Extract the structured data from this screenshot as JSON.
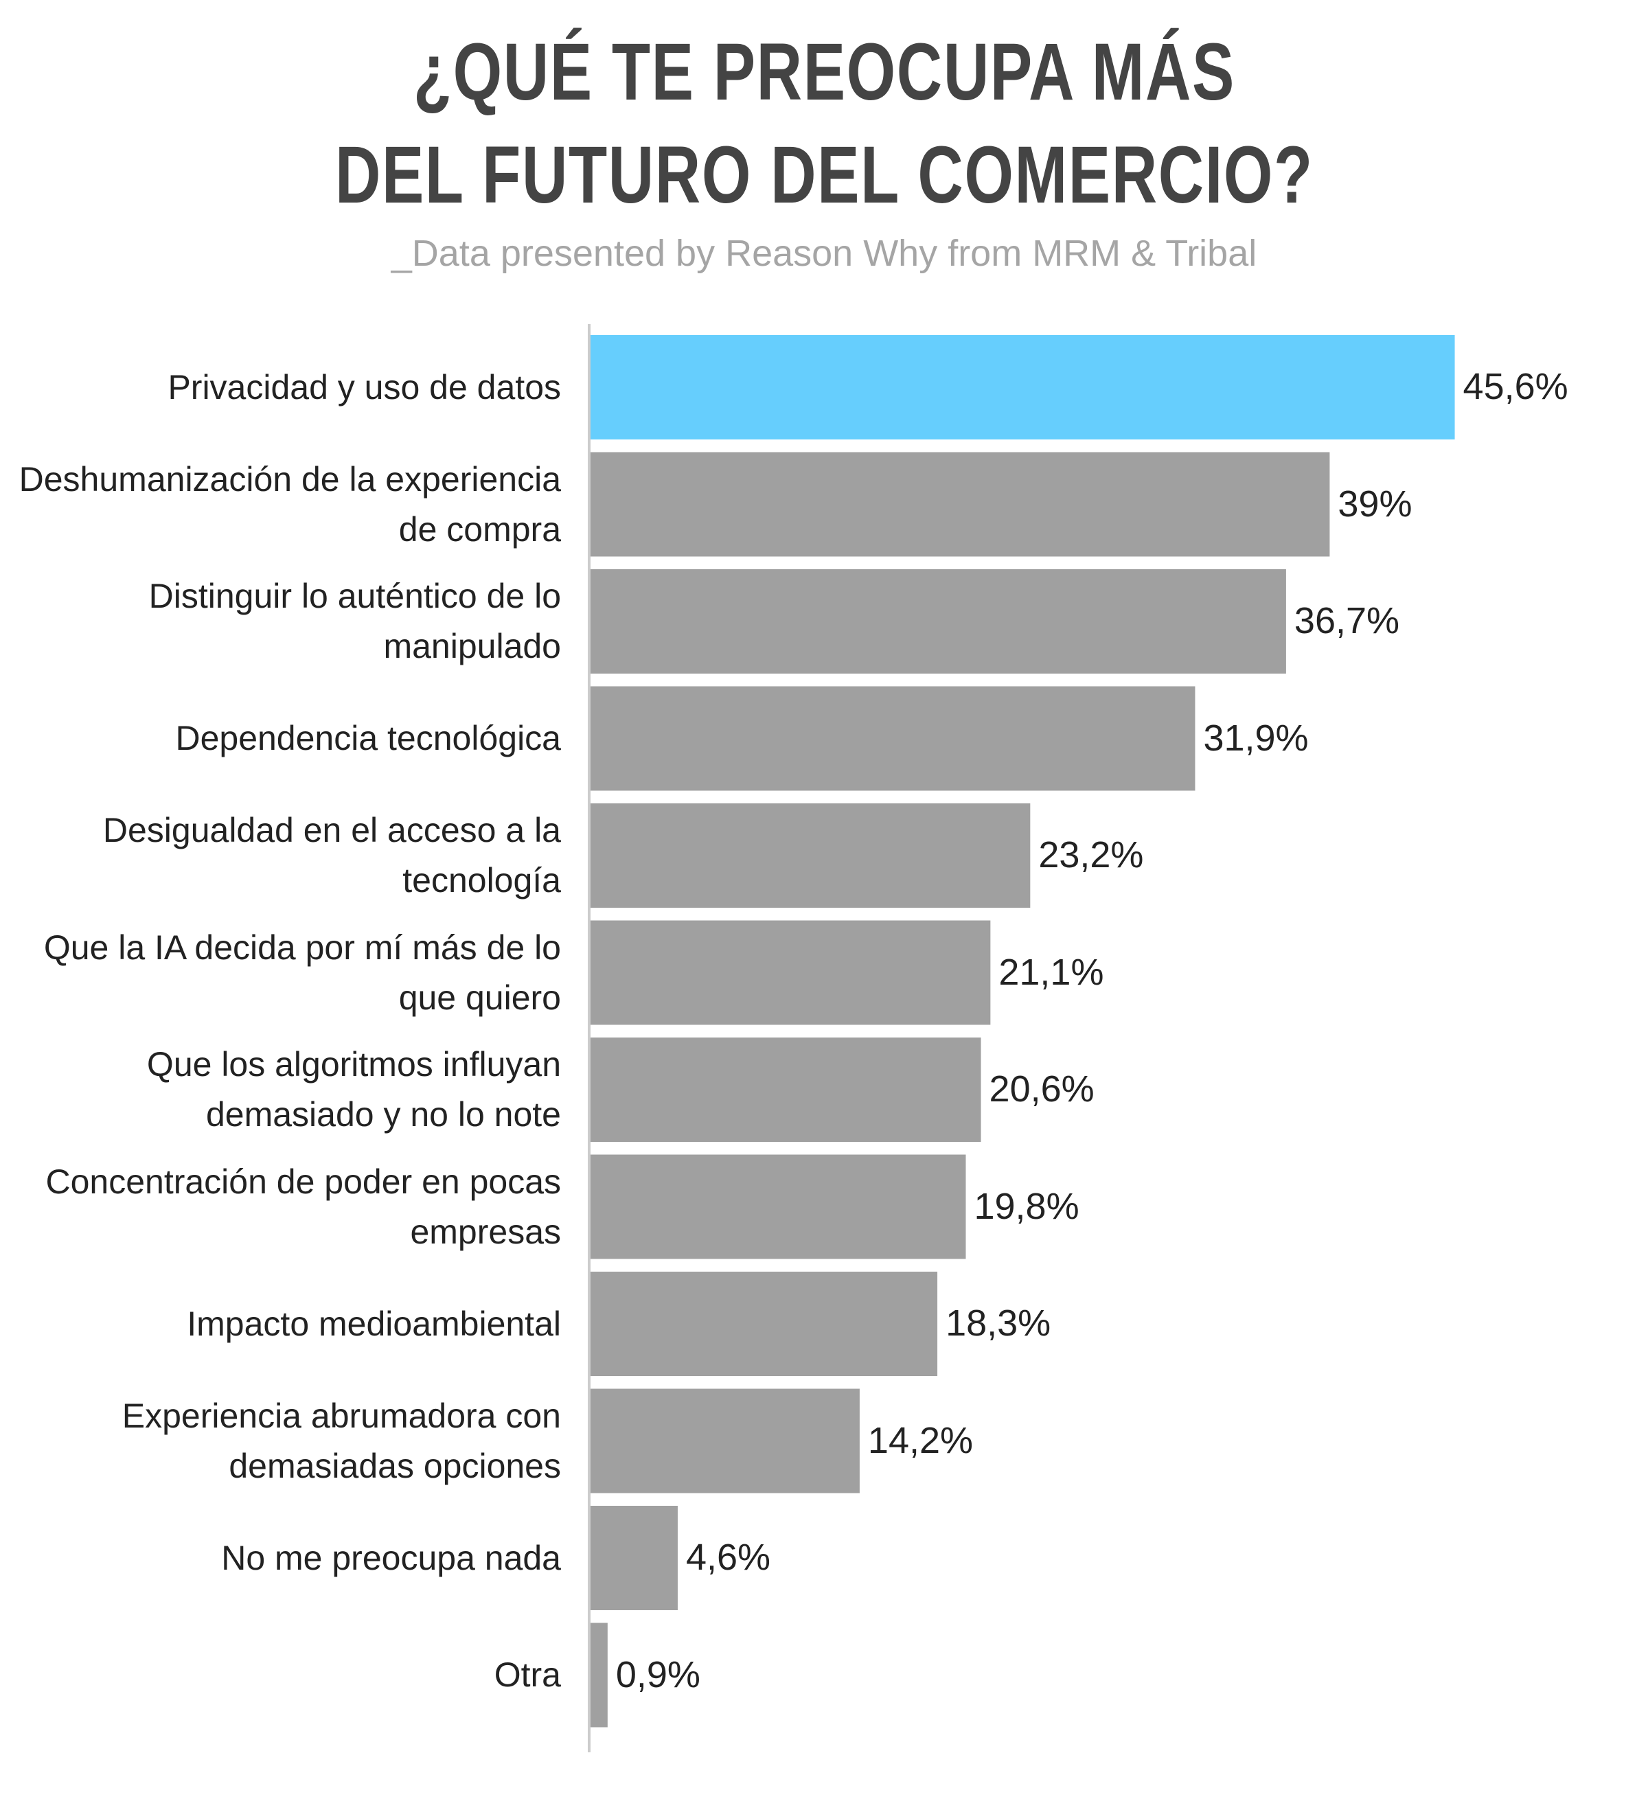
{
  "chart_data": {
    "type": "bar",
    "orientation": "horizontal",
    "title_lines": [
      "¿QUÉ TE PREOCUPA MÁS",
      "DEL FUTURO DEL COMERCIO?"
    ],
    "subtitle": "_Data presented by Reason Why from MRM & Tribal",
    "categories": [
      "Privacidad y uso de datos",
      "Deshumanización de la experiencia de compra",
      "Distinguir lo auténtico de lo manipulado",
      "Dependencia tecnológica",
      "Desigualdad en el acceso a la tecnología",
      "Que la IA decida por mí más de lo que quiero",
      "Que los algoritmos influyan demasiado y no lo note",
      "Concentración de poder en pocas empresas",
      "Impacto medioambiental",
      "Experiencia abrumadora con demasiadas opciones",
      "No me preocupa nada",
      "Otra"
    ],
    "values": [
      45.6,
      39,
      36.7,
      31.9,
      23.2,
      21.1,
      20.6,
      19.8,
      18.3,
      14.2,
      4.6,
      0.9
    ],
    "value_labels": [
      "45,6%",
      "39%",
      "36,7%",
      "31,9%",
      "23,2%",
      "21,1%",
      "20,6%",
      "19,8%",
      "18,3%",
      "14,2%",
      "4,6%",
      "0,9%"
    ],
    "unit": "%",
    "grid": false,
    "colors": {
      "highlight": "#66CEFD",
      "default": "#A0A0A0",
      "axis": "#CCCCCC"
    },
    "highlight_index": 0
  }
}
